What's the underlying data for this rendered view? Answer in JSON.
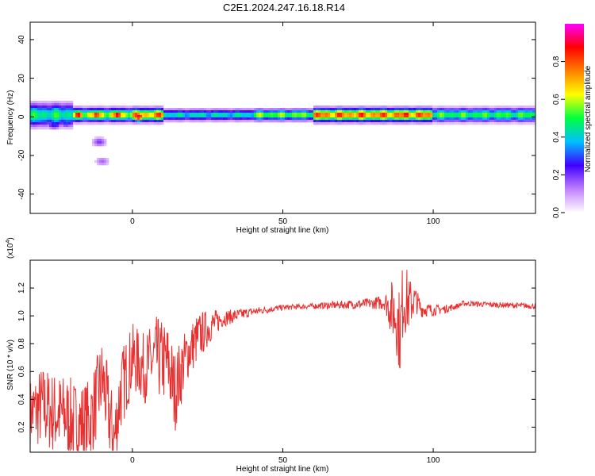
{
  "title": "C2E1.2024.247.16.18.R14",
  "chart_data": [
    {
      "type": "heatmap",
      "xlabel": "Height of straight line (km)",
      "ylabel": "Frequency (Hz)",
      "xlim": [
        -34,
        134
      ],
      "ylim": [
        -50,
        49
      ],
      "xticks": [
        0,
        50,
        100
      ],
      "yticks": [
        -40,
        -20,
        0,
        20,
        40
      ],
      "colorbar": {
        "label": "Normalized spectral amplitude",
        "range": [
          0,
          1
        ],
        "ticks": [
          "0.0",
          "0.2",
          "0.4",
          "0.6",
          "0.8"
        ],
        "colors": [
          "#ffffff",
          "#c080ff",
          "#4000ff",
          "#00c0ff",
          "#00ff40",
          "#ffff00",
          "#ff8000",
          "#ff0000",
          "#ff00ff"
        ]
      },
      "band": {
        "center_freq_hz": 1,
        "segments": [
          {
            "x": [
              -34,
              -20
            ],
            "amp": 0.55,
            "halfwidth_hz": 5
          },
          {
            "x": [
              -20,
              0
            ],
            "amp": 0.75,
            "halfwidth_hz": 3
          },
          {
            "x": [
              0,
              10
            ],
            "amp": 0.85,
            "halfwidth_hz": 3
          },
          {
            "x": [
              10,
              40
            ],
            "amp": 0.5,
            "halfwidth_hz": 2.5
          },
          {
            "x": [
              40,
              60
            ],
            "amp": 0.65,
            "halfwidth_hz": 2.5
          },
          {
            "x": [
              60,
              100
            ],
            "amp": 0.9,
            "halfwidth_hz": 3
          },
          {
            "x": [
              100,
              134
            ],
            "amp": 0.6,
            "halfwidth_hz": 3
          }
        ],
        "blobs": [
          {
            "x": -31,
            "f": -2,
            "amp": 0.35
          },
          {
            "x": -28,
            "f": 2,
            "amp": 0.45
          },
          {
            "x": -26,
            "f": -4,
            "amp": 0.3
          },
          {
            "x": -24,
            "f": 1,
            "amp": 0.5
          },
          {
            "x": -22,
            "f": -3,
            "amp": 0.3
          },
          {
            "x": -18,
            "f": 1,
            "amp": 0.95
          },
          {
            "x": -12,
            "f": 1,
            "amp": 0.9
          },
          {
            "x": -11,
            "f": -13,
            "amp": 0.2
          },
          {
            "x": -10,
            "f": -23,
            "amp": 0.15
          },
          {
            "x": -5,
            "f": 1,
            "amp": 0.95
          },
          {
            "x": 2,
            "f": 0,
            "amp": 0.95
          },
          {
            "x": 9,
            "f": 1,
            "amp": 0.9
          },
          {
            "x": 91,
            "f": 1,
            "amp": 0.95
          }
        ]
      }
    },
    {
      "type": "line",
      "xlabel": "Height of straight line (km)",
      "ylabel": "SNR (10 * v/v)",
      "ylabel_multiplier": "(x10",
      "ylabel_multiplier_exp": "4",
      "ylabel_multiplier_close": ")",
      "xlim": [
        -34,
        134
      ],
      "ylim": [
        0.02,
        1.4
      ],
      "xticks": [
        0,
        50,
        100
      ],
      "yticks": [
        0.2,
        0.4,
        0.6,
        0.8,
        1.0,
        1.2
      ],
      "color": "#e83030",
      "series": [
        {
          "x": [
            -34,
            -30,
            -26,
            -22,
            -18,
            -14,
            -10,
            -7,
            -6,
            -4,
            0,
            4,
            8,
            12,
            14,
            18,
            22,
            26,
            30,
            40,
            50,
            60,
            70,
            80,
            84,
            86,
            88,
            89,
            90,
            92,
            94,
            96,
            100,
            104,
            108,
            110,
            120,
            134
          ],
          "y_mean": [
            0.3,
            0.35,
            0.3,
            0.28,
            0.22,
            0.25,
            0.55,
            0.2,
            0.1,
            0.45,
            0.7,
            0.62,
            0.7,
            0.65,
            0.45,
            0.72,
            0.85,
            0.93,
            0.98,
            1.03,
            1.06,
            1.07,
            1.08,
            1.09,
            1.1,
            1.05,
            1.0,
            0.85,
            1.15,
            1.08,
            1.12,
            1.05,
            1.04,
            1.05,
            1.07,
            1.09,
            1.08,
            1.07
          ],
          "y_spread": [
            0.25,
            0.3,
            0.3,
            0.3,
            0.3,
            0.3,
            0.3,
            0.3,
            0.3,
            0.3,
            0.25,
            0.25,
            0.3,
            0.3,
            0.3,
            0.2,
            0.18,
            0.12,
            0.06,
            0.03,
            0.02,
            0.02,
            0.03,
            0.04,
            0.06,
            0.2,
            0.3,
            0.3,
            0.3,
            0.2,
            0.1,
            0.06,
            0.04,
            0.03,
            0.02,
            0.02,
            0.02,
            0.02
          ]
        }
      ]
    }
  ]
}
